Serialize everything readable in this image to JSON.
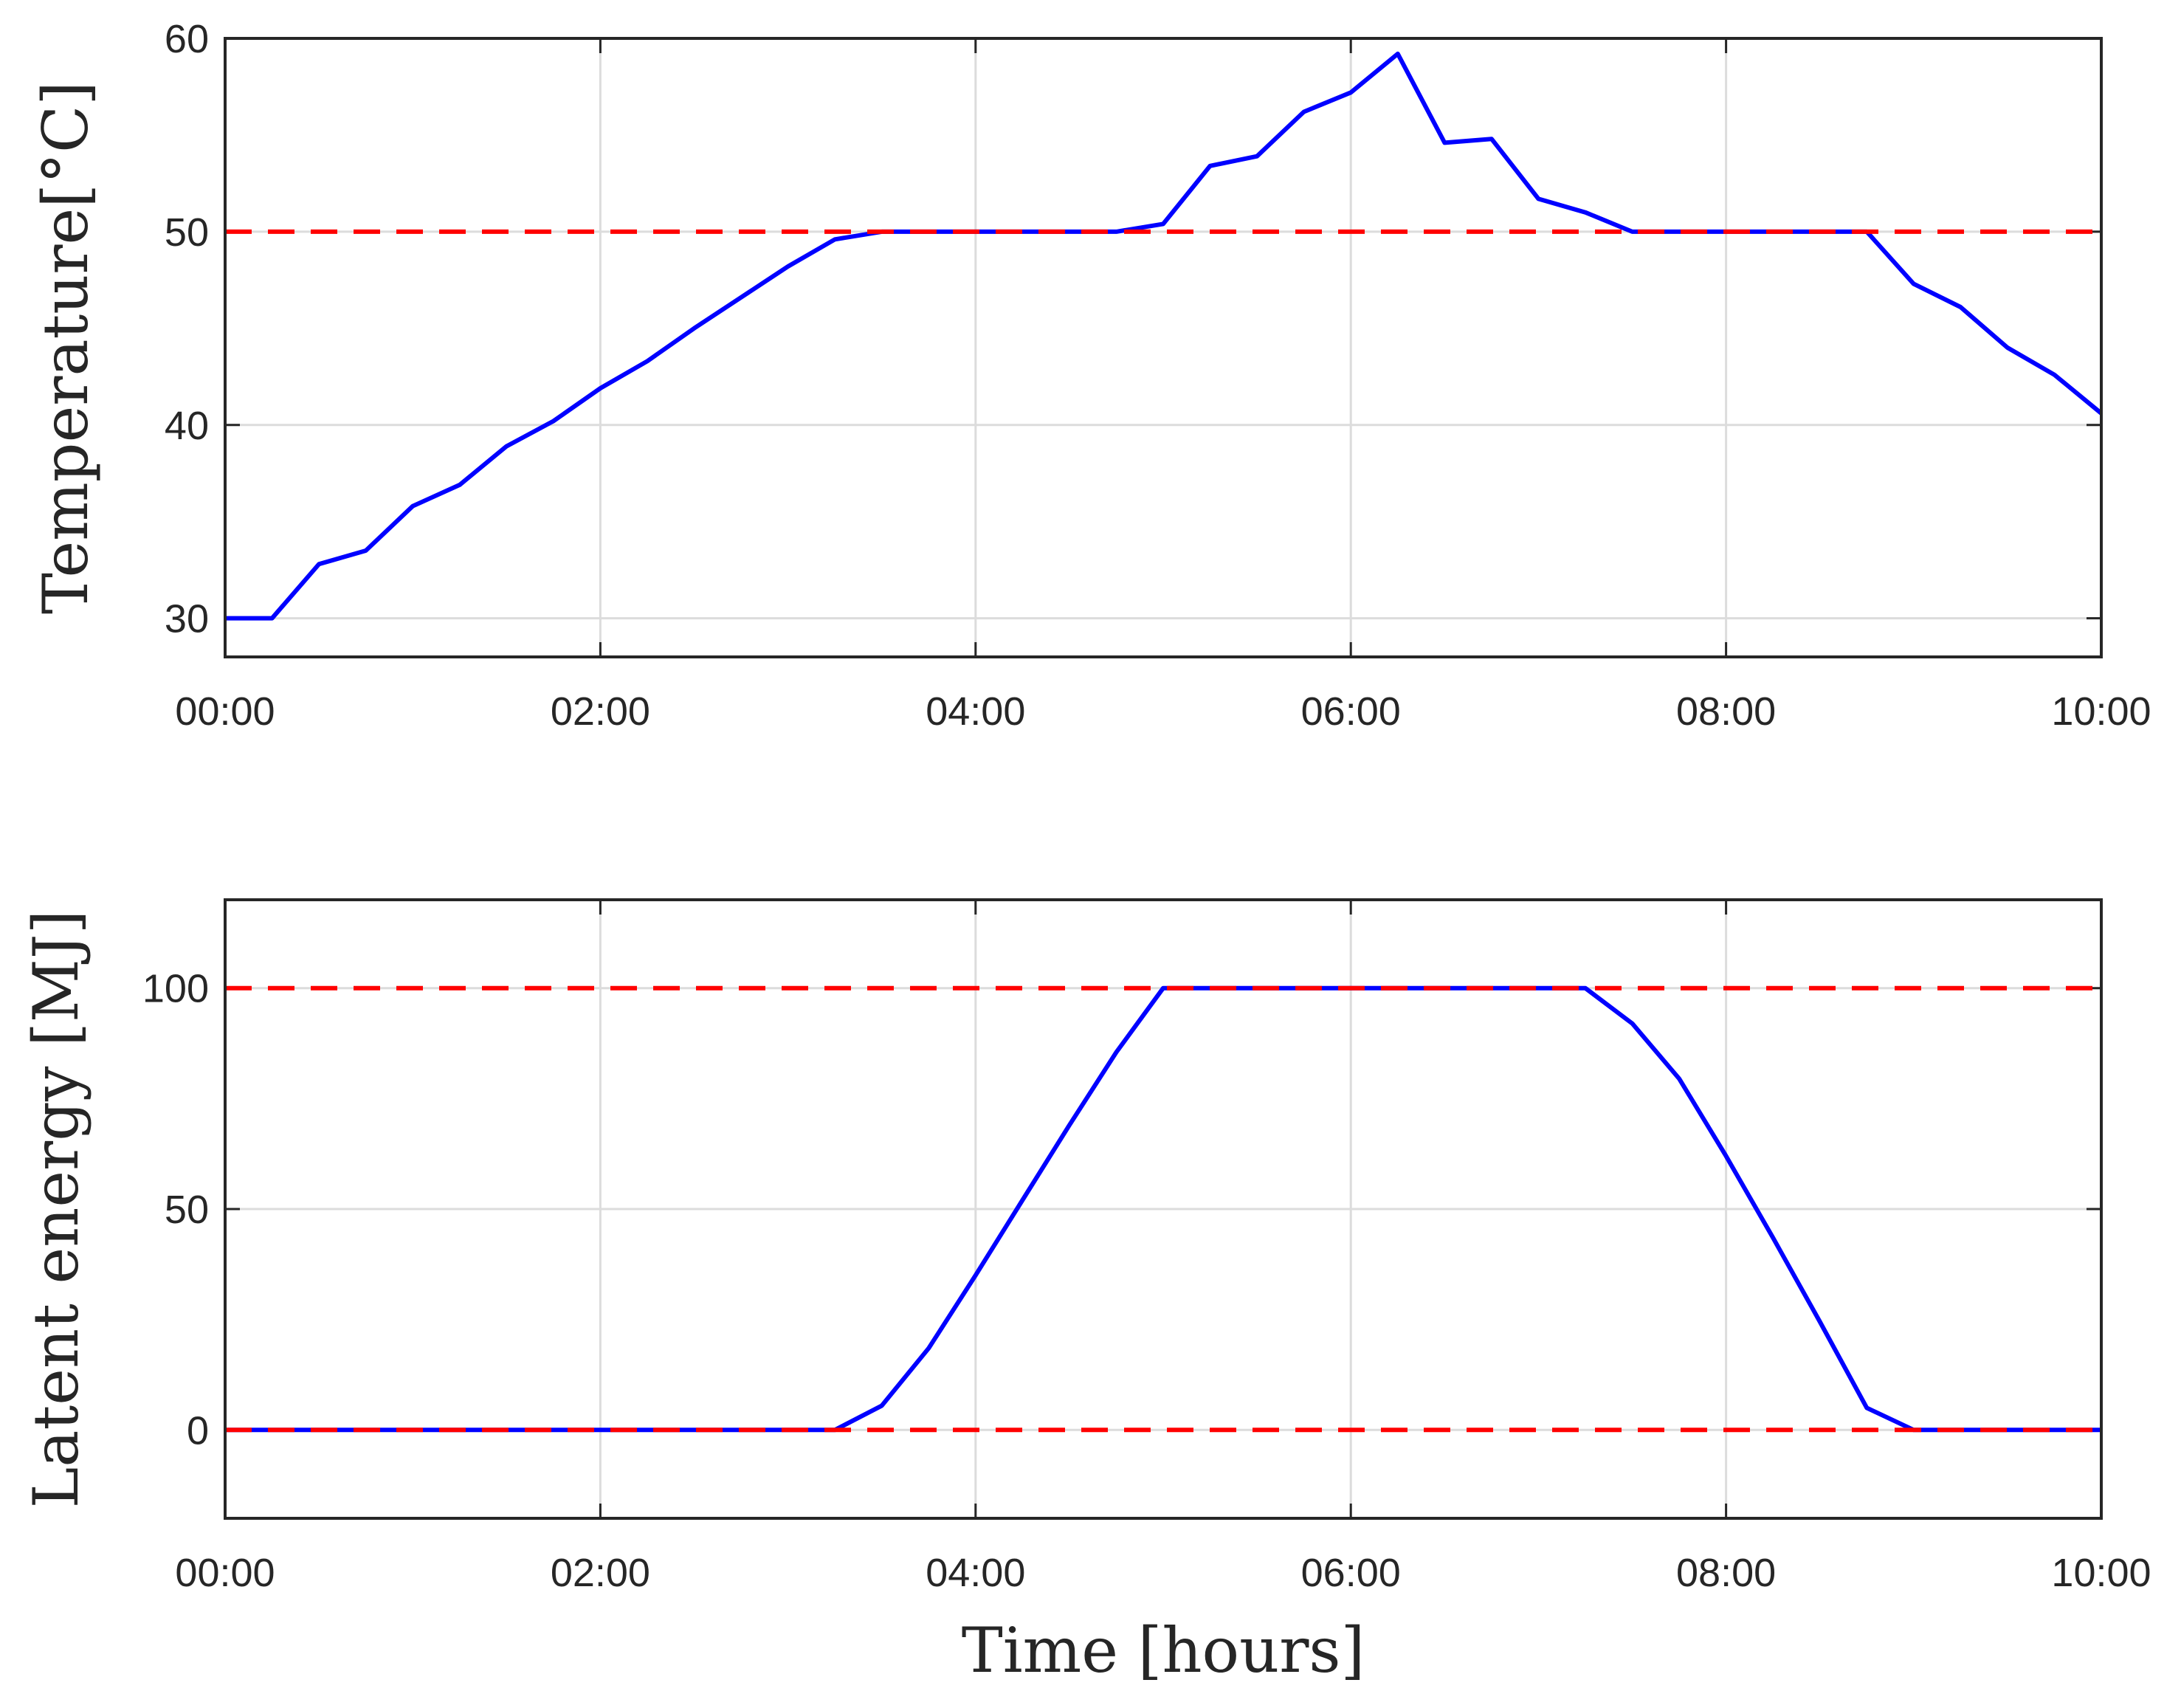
{
  "colors": {
    "series": "#0000ff",
    "limit": "#ff0000",
    "grid": "#dcdcdc",
    "axis": "#262626"
  },
  "chart_data": [
    {
      "type": "line",
      "ylabel": "Temperature[°C]",
      "xlabel": "",
      "xlim": [
        0,
        10
      ],
      "ylim": [
        28,
        60
      ],
      "x_ticks": [
        0,
        2,
        4,
        6,
        8,
        10
      ],
      "x_tick_labels": [
        "00:00",
        "02:00",
        "04:00",
        "06:00",
        "08:00",
        "10:00"
      ],
      "y_ticks": [
        30,
        40,
        50,
        60
      ],
      "y_tick_labels": [
        "30",
        "40",
        "50",
        "60"
      ],
      "grid": true,
      "limits": [
        50
      ],
      "x": [
        0,
        0.25,
        0.5,
        0.75,
        1,
        1.25,
        1.5,
        1.75,
        2,
        2.25,
        2.5,
        2.75,
        3,
        3.25,
        3.5,
        3.75,
        4,
        4.25,
        4.5,
        4.75,
        5,
        5.25,
        5.5,
        5.75,
        6,
        6.25,
        6.5,
        6.75,
        7,
        7.25,
        7.5,
        7.75,
        8,
        8.25,
        8.5,
        8.75,
        9,
        9.25,
        9.5,
        9.75,
        10
      ],
      "values": [
        30,
        30,
        32.8,
        33.5,
        35.8,
        36.9,
        38.9,
        40.2,
        41.9,
        43.3,
        45,
        46.6,
        48.2,
        49.6,
        50,
        50,
        50,
        50,
        50,
        50,
        50.4,
        53.4,
        53.9,
        56.2,
        57.2,
        59.2,
        54.6,
        54.8,
        51.7,
        51,
        50,
        50,
        50,
        50,
        50,
        50,
        47.3,
        46.1,
        44,
        42.6,
        40.6
      ]
    },
    {
      "type": "line",
      "ylabel": "Latent energy [MJ]",
      "xlabel": "Time [hours]",
      "xlim": [
        0,
        10
      ],
      "ylim": [
        -20,
        120
      ],
      "x_ticks": [
        0,
        2,
        4,
        6,
        8,
        10
      ],
      "x_tick_labels": [
        "00:00",
        "02:00",
        "04:00",
        "06:00",
        "08:00",
        "10:00"
      ],
      "y_ticks": [
        0,
        50,
        100
      ],
      "y_tick_labels": [
        "0",
        "50",
        "100"
      ],
      "grid": true,
      "limits": [
        0,
        100
      ],
      "x": [
        0,
        0.25,
        0.5,
        0.75,
        1,
        1.25,
        1.5,
        1.75,
        2,
        2.25,
        2.5,
        2.75,
        3,
        3.25,
        3.5,
        3.75,
        4,
        4.25,
        4.5,
        4.75,
        5,
        5.25,
        5.5,
        5.75,
        6,
        6.25,
        6.5,
        6.75,
        7,
        7.25,
        7.5,
        7.75,
        8,
        8.25,
        8.5,
        8.75,
        9,
        9.25,
        9.5,
        9.75,
        10
      ],
      "values": [
        0,
        0,
        0,
        0,
        0,
        0,
        0,
        0,
        0,
        0,
        0,
        0,
        0,
        0,
        5.5,
        18.5,
        35,
        52,
        69,
        85.5,
        100,
        100,
        100,
        100,
        100,
        100,
        100,
        100,
        100,
        100,
        92,
        79.5,
        62,
        43.5,
        24.5,
        5,
        0,
        0,
        0,
        0,
        0
      ]
    }
  ]
}
